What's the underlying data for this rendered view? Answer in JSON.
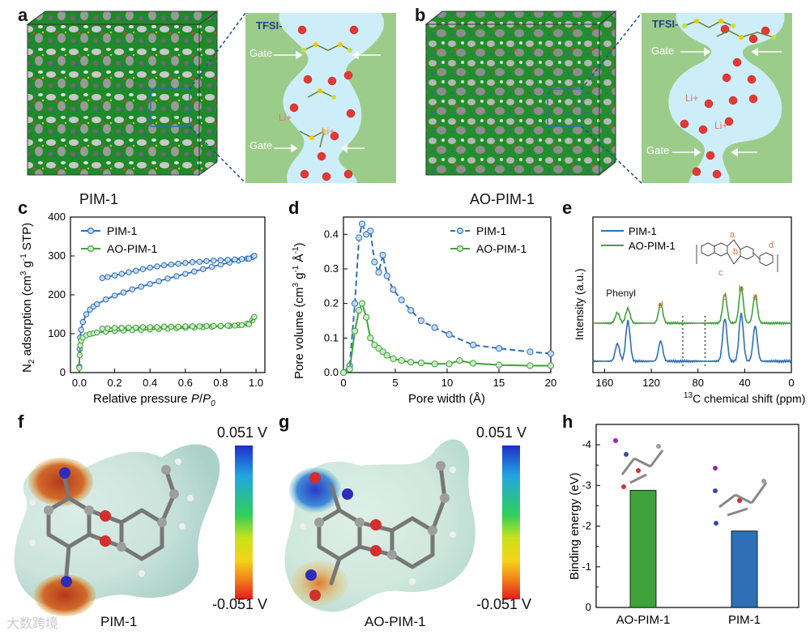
{
  "panel_labels": {
    "a": "a",
    "b": "b",
    "c": "c",
    "d": "d",
    "e": "e",
    "f": "f",
    "g": "g",
    "h": "h"
  },
  "panel_a": {
    "cube_caption": "PIM-1",
    "schematic": {
      "anion_label": "TFSI-",
      "gate_label": "Gate",
      "cation_label": "Li+"
    }
  },
  "panel_b": {
    "cube_caption": "AO-PIM-1",
    "schematic": {
      "anion_label": "TFSI-",
      "gate_label": "Gate",
      "cation_label": "Li+"
    }
  },
  "colors": {
    "pim1": "#2e6fb5",
    "aopim1": "#3fa23a",
    "pim1_marker_fill": "#c7d9ee",
    "aopim1_marker_fill": "#cdeac8",
    "schematic_bg": "#9ccc8a",
    "channel": "#cdeef8",
    "li_ion": "#e53935"
  },
  "chart_data": [
    {
      "id": "c",
      "type": "scatter",
      "xlabel": "Relative pressure P/P0",
      "ylabel": "N2 adsorption (cm3 g-1 STP)",
      "xlim": [
        -0.05,
        1.05
      ],
      "ylim": [
        0,
        400
      ],
      "xticks": [
        "0.0",
        "0.2",
        "0.4",
        "0.6",
        "0.8",
        "1.0"
      ],
      "yticks": [
        "0",
        "100",
        "200",
        "300",
        "400"
      ],
      "legend": [
        "PIM-1",
        "AO-PIM-1"
      ],
      "series": [
        {
          "name": "PIM-1",
          "adsorption": [
            [
              0.0,
              15
            ],
            [
              0.002,
              60
            ],
            [
              0.005,
              90
            ],
            [
              0.01,
              110
            ],
            [
              0.02,
              130
            ],
            [
              0.04,
              150
            ],
            [
              0.06,
              162
            ],
            [
              0.08,
              170
            ],
            [
              0.1,
              176
            ],
            [
              0.15,
              188
            ],
            [
              0.2,
              198
            ],
            [
              0.25,
              206
            ],
            [
              0.3,
              214
            ],
            [
              0.35,
              221
            ],
            [
              0.4,
              228
            ],
            [
              0.45,
              235
            ],
            [
              0.5,
              242
            ],
            [
              0.55,
              248
            ],
            [
              0.6,
              254
            ],
            [
              0.65,
              260
            ],
            [
              0.7,
              266
            ],
            [
              0.75,
              272
            ],
            [
              0.8,
              278
            ],
            [
              0.85,
              283
            ],
            [
              0.9,
              288
            ],
            [
              0.95,
              293
            ],
            [
              0.98,
              297
            ],
            [
              0.99,
              300
            ]
          ],
          "desorption": [
            [
              0.99,
              300
            ],
            [
              0.96,
              293
            ],
            [
              0.92,
              292
            ],
            [
              0.88,
              291
            ],
            [
              0.84,
              290
            ],
            [
              0.8,
              289
            ],
            [
              0.76,
              288
            ],
            [
              0.72,
              287
            ],
            [
              0.68,
              285
            ],
            [
              0.64,
              284
            ],
            [
              0.6,
              282
            ],
            [
              0.56,
              280
            ],
            [
              0.52,
              278
            ],
            [
              0.48,
              276
            ],
            [
              0.44,
              273
            ],
            [
              0.4,
              270
            ],
            [
              0.36,
              266
            ],
            [
              0.32,
              262
            ],
            [
              0.28,
              258
            ],
            [
              0.24,
              254
            ],
            [
              0.2,
              250
            ],
            [
              0.16,
              246
            ],
            [
              0.13,
              243
            ]
          ]
        },
        {
          "name": "AO-PIM-1",
          "adsorption": [
            [
              0.0,
              12
            ],
            [
              0.002,
              45
            ],
            [
              0.005,
              70
            ],
            [
              0.01,
              82
            ],
            [
              0.02,
              90
            ],
            [
              0.04,
              96
            ],
            [
              0.06,
              99
            ],
            [
              0.08,
              101
            ],
            [
              0.1,
              103
            ],
            [
              0.15,
              105
            ],
            [
              0.2,
              107
            ],
            [
              0.25,
              108
            ],
            [
              0.3,
              109
            ],
            [
              0.35,
              110
            ],
            [
              0.4,
              111
            ],
            [
              0.45,
              112
            ],
            [
              0.5,
              113
            ],
            [
              0.55,
              114
            ],
            [
              0.6,
              115
            ],
            [
              0.65,
              116
            ],
            [
              0.7,
              117
            ],
            [
              0.75,
              118
            ],
            [
              0.8,
              119
            ],
            [
              0.85,
              120
            ],
            [
              0.9,
              122
            ],
            [
              0.95,
              126
            ],
            [
              0.98,
              135
            ],
            [
              0.99,
              143
            ]
          ],
          "desorption": [
            [
              0.99,
              143
            ],
            [
              0.96,
              124
            ],
            [
              0.92,
              122
            ],
            [
              0.88,
              121
            ],
            [
              0.84,
              121
            ],
            [
              0.8,
              120
            ],
            [
              0.76,
              120
            ],
            [
              0.72,
              120
            ],
            [
              0.68,
              119
            ],
            [
              0.64,
              119
            ],
            [
              0.6,
              119
            ],
            [
              0.56,
              118
            ],
            [
              0.52,
              118
            ],
            [
              0.48,
              118
            ],
            [
              0.44,
              117
            ],
            [
              0.4,
              117
            ],
            [
              0.36,
              117
            ],
            [
              0.32,
              116
            ],
            [
              0.28,
              116
            ],
            [
              0.24,
              115
            ],
            [
              0.2,
              115
            ],
            [
              0.16,
              114
            ],
            [
              0.13,
              113
            ]
          ]
        }
      ]
    },
    {
      "id": "d",
      "type": "line",
      "xlabel": "Pore width (Å)",
      "ylabel": "Pore volume (cm3 g-1 Å-1)",
      "xlim": [
        0,
        20
      ],
      "ylim": [
        0,
        0.45
      ],
      "xticks": [
        "0",
        "5",
        "10",
        "15",
        "20"
      ],
      "yticks": [
        "0.0",
        "0.1",
        "0.2",
        "0.3",
        "0.4"
      ],
      "legend": [
        "PIM-1",
        "AO-PIM-1"
      ],
      "series": [
        {
          "name": "PIM-1",
          "points": [
            [
              0.0,
              0.0
            ],
            [
              0.6,
              0.02
            ],
            [
              1.1,
              0.2
            ],
            [
              1.5,
              0.39
            ],
            [
              1.8,
              0.43
            ],
            [
              2.2,
              0.4
            ],
            [
              2.6,
              0.41
            ],
            [
              3.0,
              0.32
            ],
            [
              3.4,
              0.29
            ],
            [
              3.8,
              0.34
            ],
            [
              4.2,
              0.28
            ],
            [
              4.8,
              0.24
            ],
            [
              5.6,
              0.21
            ],
            [
              6.5,
              0.18
            ],
            [
              7.5,
              0.15
            ],
            [
              8.8,
              0.13
            ],
            [
              10.2,
              0.11
            ],
            [
              12.5,
              0.08
            ],
            [
              15.0,
              0.07
            ],
            [
              18.0,
              0.06
            ],
            [
              20.0,
              0.055
            ]
          ]
        },
        {
          "name": "AO-PIM-1",
          "points": [
            [
              0.0,
              0.0
            ],
            [
              0.6,
              0.01
            ],
            [
              1.1,
              0.12
            ],
            [
              1.5,
              0.18
            ],
            [
              1.8,
              0.2
            ],
            [
              2.2,
              0.16
            ],
            [
              2.6,
              0.1
            ],
            [
              3.0,
              0.08
            ],
            [
              3.4,
              0.07
            ],
            [
              3.8,
              0.06
            ],
            [
              4.2,
              0.05
            ],
            [
              4.8,
              0.04
            ],
            [
              5.6,
              0.035
            ],
            [
              6.5,
              0.03
            ],
            [
              7.5,
              0.028
            ],
            [
              8.8,
              0.025
            ],
            [
              10.2,
              0.025
            ],
            [
              11.2,
              0.035
            ],
            [
              12.5,
              0.027
            ],
            [
              15.0,
              0.022
            ],
            [
              18.0,
              0.02
            ],
            [
              20.0,
              0.02
            ]
          ]
        }
      ]
    },
    {
      "id": "e",
      "type": "line",
      "xlabel": "13C chemical shift (ppm)",
      "ylabel": "Intensity (a.u.)",
      "xlim": [
        170,
        0
      ],
      "xticks": [
        "160",
        "120",
        "80",
        "40",
        "0"
      ],
      "legend": [
        "PIM-1",
        "AO-PIM-1"
      ],
      "peak_labels": [
        "Phenyl",
        "d",
        "c",
        "b",
        "a"
      ],
      "peak_positions_ppm": {
        "phenyl": 146,
        "d": 112,
        "c": 57,
        "b": 43,
        "a": 31
      },
      "dotted_lines_ppm": [
        93,
        74
      ],
      "series": [
        {
          "name": "PIM-1",
          "peaks": [
            [
              149,
              0.35
            ],
            [
              140,
              0.8
            ],
            [
              112,
              0.4
            ],
            [
              57,
              0.85
            ],
            [
              43,
              0.95
            ],
            [
              31,
              0.7
            ]
          ]
        },
        {
          "name": "AO-PIM-1",
          "peaks": [
            [
              149,
              0.25
            ],
            [
              140,
              0.35
            ],
            [
              112,
              0.45
            ],
            [
              57,
              0.7
            ],
            [
              43,
              0.85
            ],
            [
              31,
              0.65
            ]
          ]
        }
      ],
      "structure_labels": [
        "a",
        "b",
        "c",
        "d"
      ]
    },
    {
      "id": "h",
      "type": "bar",
      "ylabel": "Binding energy (eV)",
      "categories": [
        "AO-PIM-1",
        "PIM-1"
      ],
      "values": [
        -2.88,
        -1.88
      ],
      "ylim": [
        0,
        -4.5
      ],
      "yticks": [
        "0",
        "-1",
        "-2",
        "-3",
        "-4"
      ],
      "colors": [
        "#3fa23a",
        "#2e6fb5"
      ]
    }
  ],
  "panel_f": {
    "caption": "PIM-1",
    "scale_top": "0.051 V",
    "scale_bottom": "-0.051 V"
  },
  "panel_g": {
    "caption": "AO-PIM-1",
    "scale_top": "0.051 V",
    "scale_bottom": "-0.051 V"
  },
  "watermark": "大数跨境"
}
